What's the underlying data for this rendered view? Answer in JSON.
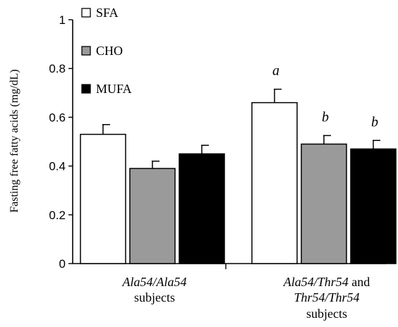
{
  "chart_data": {
    "type": "bar",
    "ylabel": "Fasting free fatty acids (mg/dL)",
    "ylim": [
      0,
      1
    ],
    "yticks": [
      "0",
      "0.2",
      "0.4",
      "0.6",
      "0.8",
      "1"
    ],
    "grid": false,
    "legend_position": "top-left",
    "groups": [
      {
        "label_parts": [
          {
            "text": "Ala54/Ala54",
            "italic": true
          }
        ],
        "label_line2_parts": [
          {
            "text": "subjects",
            "italic": false
          }
        ],
        "label_line3_parts": []
      },
      {
        "label_parts": [
          {
            "text": "Ala54/Thr54",
            "italic": true
          },
          {
            "text": " and",
            "italic": false
          }
        ],
        "label_line2_parts": [
          {
            "text": "Thr54/Thr54",
            "italic": true
          }
        ],
        "label_line3_parts": [
          {
            "text": "subjects",
            "italic": false
          }
        ]
      }
    ],
    "series": [
      {
        "name": "SFA",
        "color": "#ffffff",
        "values": [
          0.53,
          0.66
        ],
        "errors": [
          0.04,
          0.055
        ],
        "annotations": [
          "",
          "a"
        ]
      },
      {
        "name": "CHO",
        "color": "#9a9a9a",
        "values": [
          0.39,
          0.49
        ],
        "errors": [
          0.03,
          0.035
        ],
        "annotations": [
          "",
          "b"
        ]
      },
      {
        "name": "MUFA",
        "color": "#000000",
        "values": [
          0.45,
          0.47
        ],
        "errors": [
          0.035,
          0.035
        ],
        "annotations": [
          "",
          "b"
        ]
      }
    ]
  }
}
